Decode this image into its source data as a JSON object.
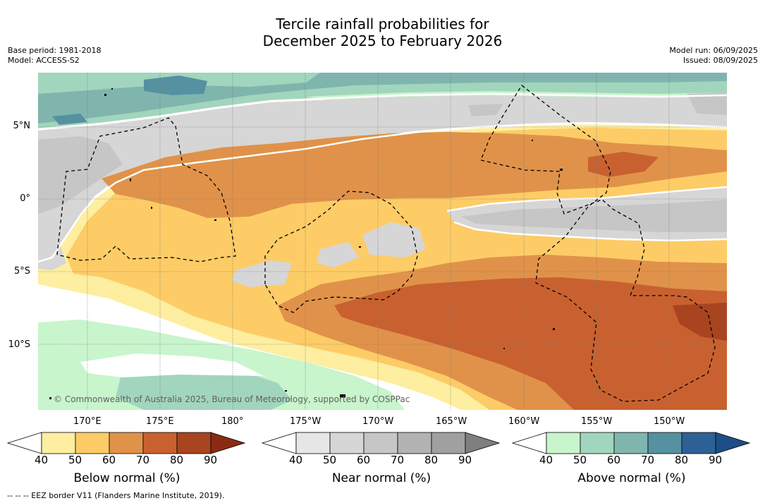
{
  "title_line1": "Tercile rainfall probabilities for",
  "title_line2": "December 2025 to February 2026",
  "base_period": "Base period: 1981-2018",
  "model": "Model: ACCESS-S2",
  "model_run": "Model run: 06/09/2025",
  "issued": "Issued: 08/09/2025",
  "lat_labels": [
    "5°N",
    "0°",
    "5°S",
    "10°S"
  ],
  "lon_labels": [
    "170°E",
    "175°E",
    "180°",
    "175°W",
    "170°W",
    "165°W",
    "160°W",
    "155°W",
    "150°W"
  ],
  "copyright": "© Commonwealth of Australia 2025, Bureau of Meteorology, supported by COSPPac",
  "colorbars": [
    {
      "title": "Below normal (%)",
      "ticks": [
        "40",
        "50",
        "60",
        "70",
        "80",
        "90"
      ],
      "colors": [
        "#ffffff",
        "#fdeea0",
        "#fdcc66",
        "#e0924a",
        "#c8612f",
        "#a8441f",
        "#8b2a12"
      ]
    },
    {
      "title": "Near normal (%)",
      "ticks": [
        "40",
        "50",
        "60",
        "70",
        "80",
        "90"
      ],
      "colors": [
        "#ffffff",
        "#e6e6e6",
        "#d6d6d6",
        "#c6c6c6",
        "#b2b2b2",
        "#a0a0a0",
        "#7f7f7f"
      ]
    },
    {
      "title": "Above normal (%)",
      "ticks": [
        "40",
        "50",
        "60",
        "70",
        "80",
        "90"
      ],
      "colors": [
        "#ffffff",
        "#c8f5cc",
        "#a2d5bd",
        "#80b5ae",
        "#5591a1",
        "#2d6196",
        "#1d4f86"
      ]
    }
  ],
  "footnote": "--  --  -- EEZ border V11 (Flanders Marine Institute, 2019)."
}
